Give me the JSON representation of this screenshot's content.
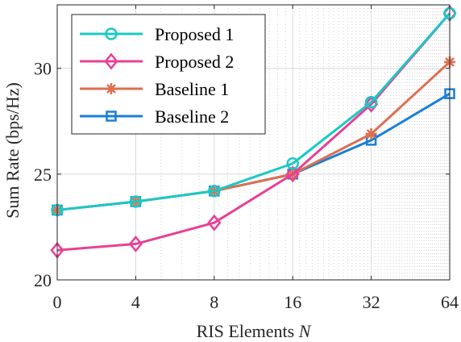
{
  "chart_data": {
    "type": "line",
    "x_scale": "log2",
    "x": [
      0,
      4,
      8,
      16,
      32,
      64
    ],
    "xticklabels": [
      "0",
      "4",
      "8",
      "16",
      "32",
      "64"
    ],
    "xlabel_prefix": "RIS Elements ",
    "xlabel_var": "N",
    "ylabel": "Sum Rate (bps/Hz)",
    "ylim": [
      20,
      33
    ],
    "yticks": [
      20,
      25,
      30
    ],
    "grid": true,
    "legend_position": "top-left",
    "series": [
      {
        "name": "Proposed 1",
        "color": "#1ac9c4",
        "marker": "circle",
        "values": [
          23.3,
          23.7,
          24.2,
          25.5,
          28.4,
          32.6
        ]
      },
      {
        "name": "Proposed 2",
        "color": "#e64196",
        "marker": "diamond",
        "values": [
          21.4,
          21.7,
          22.7,
          25.0,
          28.3,
          32.6
        ]
      },
      {
        "name": "Baseline 1",
        "color": "#dc7050",
        "marker": "asterisk",
        "values": [
          23.3,
          23.7,
          24.2,
          25.0,
          26.9,
          30.3
        ]
      },
      {
        "name": "Baseline 2",
        "color": "#1a7fd6",
        "marker": "square",
        "values": [
          23.3,
          23.7,
          24.2,
          25.0,
          26.6,
          28.8
        ]
      }
    ]
  }
}
